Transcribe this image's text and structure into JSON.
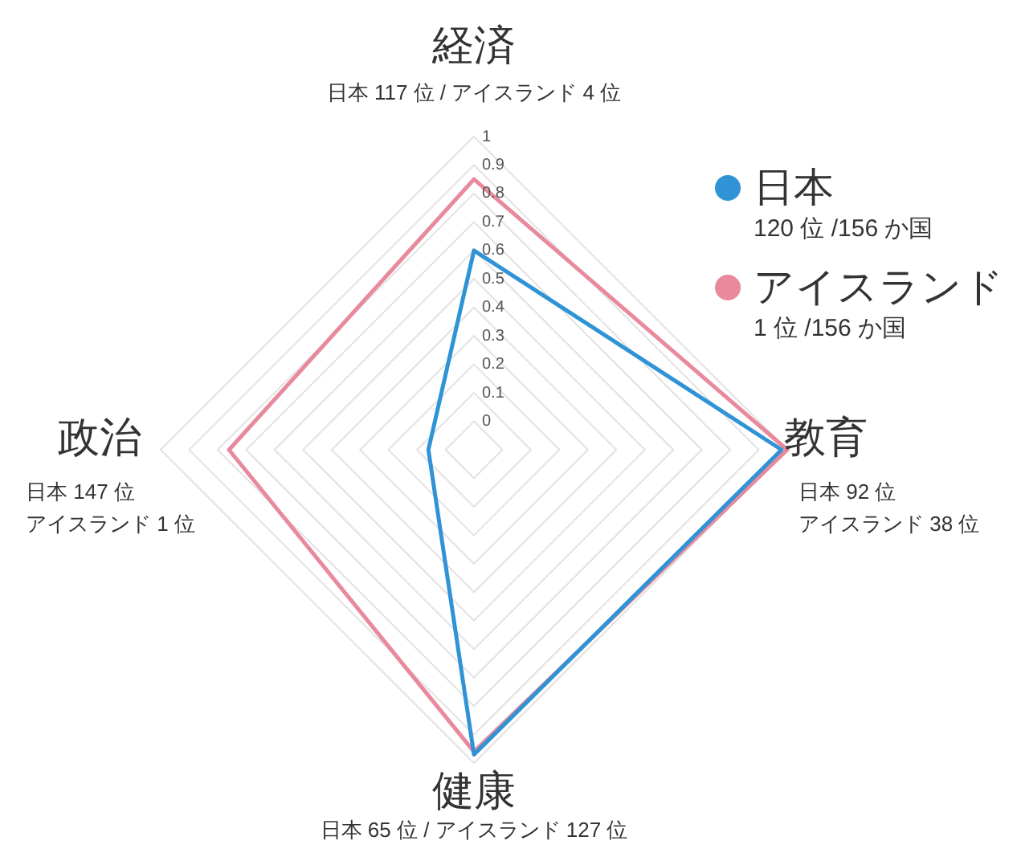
{
  "chart_data": {
    "type": "radar",
    "categories": [
      "経済",
      "教育",
      "健康",
      "政治"
    ],
    "series": [
      {
        "name": "日本",
        "color": "#2f93d6",
        "values": [
          0.6,
          0.98,
          0.97,
          0.06
        ]
      },
      {
        "name": "アイスランド",
        "color": "#e88a9c",
        "values": [
          0.85,
          1.0,
          0.96,
          0.76
        ]
      }
    ],
    "ylim": [
      -0.1,
      1
    ],
    "yticks": [
      0,
      0.1,
      0.2,
      0.3,
      0.4,
      0.5,
      0.6,
      0.7,
      0.8,
      0.9,
      1
    ],
    "grid": true,
    "legend": "top right",
    "marker": "none",
    "line_style": "solid",
    "annotations": [
      "日本 117 位 / アイスランド 4 位",
      "日本 92 位",
      "アイスランド 38 位",
      "日本 65 位 / アイスランド 127 位",
      "日本 147 位",
      "アイスランド 1 位",
      "120 位 /156 か国",
      "1 位 /156 か国"
    ]
  }
}
